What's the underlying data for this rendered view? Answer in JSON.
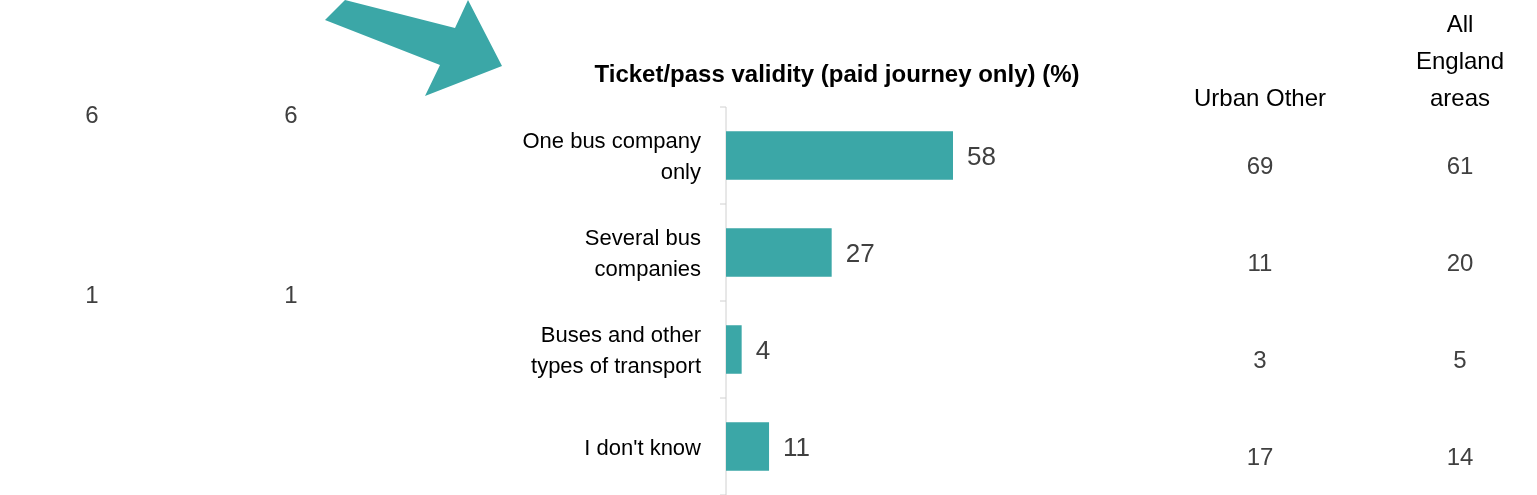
{
  "chart_data": {
    "type": "bar",
    "orientation": "horizontal",
    "title": "Ticket/pass validity (paid journey only) (%)",
    "categories": [
      "One bus company only",
      "Several bus companies",
      "Buses and other types of transport",
      "I don't know"
    ],
    "values": [
      58,
      27,
      4,
      11
    ],
    "color": "#3ba7a7",
    "data_labels": true,
    "annotations": [
      "Urban Other",
      "All England areas",
      "69",
      "61",
      "11",
      "20",
      "3",
      "5",
      "17",
      "14",
      "6",
      "6",
      "1",
      "1"
    ]
  }
}
